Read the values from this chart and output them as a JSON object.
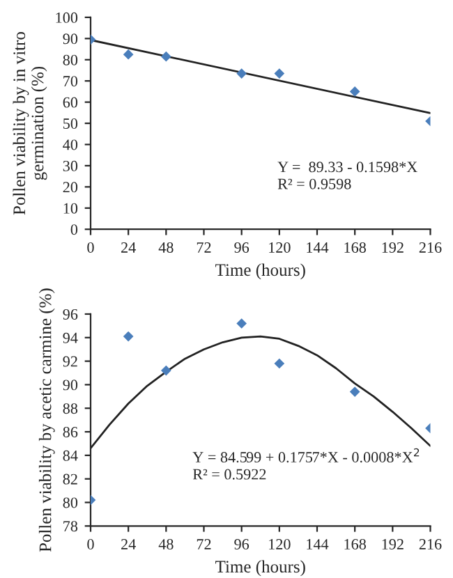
{
  "chart_data": [
    {
      "type": "scatter",
      "xlabel": "Time (hours)",
      "ylabel": "Pollen viability by in vitro germination (%)",
      "xlim": [
        0,
        216
      ],
      "xticks": [
        0,
        24,
        48,
        72,
        96,
        120,
        144,
        168,
        192,
        216
      ],
      "ylim": [
        0,
        100
      ],
      "yticks": [
        0,
        10,
        20,
        30,
        40,
        50,
        60,
        70,
        80,
        90,
        100
      ],
      "series": [
        {
          "color": "#4a7ebb",
          "marker": "diamond",
          "x": [
            0,
            24,
            48,
            96,
            120,
            168,
            216
          ],
          "values": [
            89.5,
            82.5,
            81.5,
            73.5,
            73.5,
            65,
            51
          ]
        },
        {
          "type": "line",
          "color": "#222222",
          "marker": "none",
          "x": [
            0,
            216
          ],
          "values": [
            89.3,
            54.8
          ]
        }
      ],
      "annotations": [
        "Y =  89.33 - 0.1598*X",
        "R² = 0.9598"
      ]
    },
    {
      "type": "scatter",
      "xlabel": "Time (hours)",
      "ylabel": "Pollen viability by acetic carmine (%)",
      "xlim": [
        0,
        216
      ],
      "xticks": [
        0,
        24,
        48,
        72,
        96,
        120,
        144,
        168,
        192,
        216
      ],
      "ylim": [
        78,
        96
      ],
      "yticks": [
        78,
        80,
        82,
        84,
        86,
        88,
        90,
        92,
        94,
        96
      ],
      "series": [
        {
          "color": "#4a7ebb",
          "marker": "diamond",
          "x": [
            0,
            24,
            48,
            96,
            120,
            168,
            216
          ],
          "values": [
            80.2,
            94.1,
            91.2,
            95.2,
            91.8,
            89.4,
            86.3
          ]
        },
        {
          "type": "line",
          "color": "#222222",
          "marker": "none",
          "x": [
            0,
            12,
            24,
            36,
            48,
            60,
            72,
            84,
            96,
            108,
            120,
            132,
            144,
            156,
            168,
            180,
            192,
            204,
            216
          ],
          "values": [
            84.6,
            86.6,
            88.4,
            89.9,
            91.1,
            92.2,
            93.0,
            93.6,
            94.0,
            94.1,
            93.9,
            93.3,
            92.5,
            91.4,
            90.1,
            89.0,
            87.7,
            86.3,
            84.8
          ]
        }
      ],
      "annotations": [
        "Y = 84.599 + 0.1757*X - 0.0008*X$^{2}$",
        "R² = 0.5922"
      ]
    }
  ]
}
